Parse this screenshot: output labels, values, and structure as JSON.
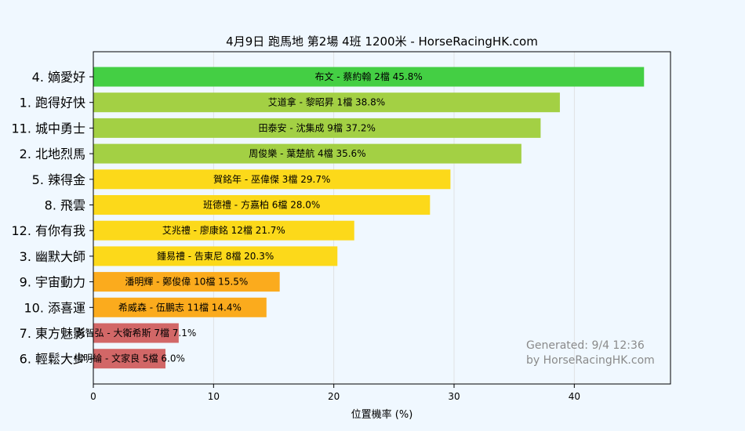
{
  "chart_data": {
    "type": "bar",
    "orientation": "horizontal",
    "title": "4月9日  跑馬地  第2場  4班  1200米 - HorseRacingHK.com",
    "xlabel": "位置機率 (%)",
    "ylabel": "",
    "xlim": [
      0,
      48
    ],
    "xticks": [
      "0",
      "10",
      "20",
      "30",
      "40"
    ],
    "grid": true,
    "bars": [
      {
        "horse": "4. 嫡愛好",
        "label": "布文 - 蔡約翰 2檔  45.8%",
        "value": 45.8,
        "color": "#44cf44"
      },
      {
        "horse": "1. 跑得好快",
        "label": "艾道拿 - 黎昭昇 1檔  38.8%",
        "value": 38.8,
        "color": "#a3d044"
      },
      {
        "horse": "11. 城中勇士",
        "label": "田泰安 - 沈集成 9檔  37.2%",
        "value": 37.2,
        "color": "#a3d044"
      },
      {
        "horse": "2. 北地烈馬",
        "label": "周俊樂 - 葉楚航 4檔  35.6%",
        "value": 35.6,
        "color": "#a3d044"
      },
      {
        "horse": "5. 辣得金",
        "label": "賀銘年 - 巫偉傑 3檔  29.7%",
        "value": 29.7,
        "color": "#fcd91a"
      },
      {
        "horse": "8. 飛雲",
        "label": "班德禮 - 方嘉柏 6檔  28.0%",
        "value": 28.0,
        "color": "#fcd91a"
      },
      {
        "horse": "12. 有你有我",
        "label": "艾兆禮 - 廖康銘 12檔  21.7%",
        "value": 21.7,
        "color": "#fcd91a"
      },
      {
        "horse": "3. 幽默大師",
        "label": "鍾易禮 - 告東尼 8檔  20.3%",
        "value": 20.3,
        "color": "#fcd91a"
      },
      {
        "horse": "9. 宇宙動力",
        "label": "潘明輝 - 鄭俊偉 10檔  15.5%",
        "value": 15.5,
        "color": "#fbab1d"
      },
      {
        "horse": "10. 添喜運",
        "label": "希威森 - 伍鵬志 11檔  14.4%",
        "value": 14.4,
        "color": "#fbab1d"
      },
      {
        "horse": "7. 東方魅影",
        "label": "黃智弘 - 大衛希斯 7檔  7.1%",
        "value": 7.1,
        "color": "#d26767"
      },
      {
        "horse": "6. 輕鬆大少",
        "label": "楊明綸 - 文家良 5檔  6.0%",
        "value": 6.0,
        "color": "#d26767"
      }
    ],
    "watermark": [
      "Generated: 9/4 12:36",
      "by HorseRacingHK.com"
    ]
  }
}
